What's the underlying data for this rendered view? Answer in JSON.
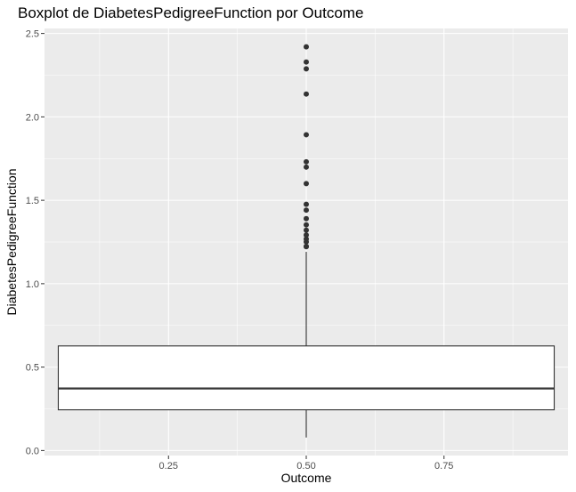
{
  "chart_data": {
    "type": "boxplot",
    "title": "Boxplot de DiabetesPedigreeFunction por Outcome",
    "xlabel": "Outcome",
    "ylabel": "DiabetesPedigreeFunction",
    "xlim": [
      0.025,
      0.975
    ],
    "ylim": [
      -0.03,
      2.53
    ],
    "x_ticks": [
      {
        "value": 0.25,
        "label": "0.25"
      },
      {
        "value": 0.5,
        "label": "0.50"
      },
      {
        "value": 0.75,
        "label": "0.75"
      }
    ],
    "y_ticks": [
      {
        "value": 0.0,
        "label": "0.0"
      },
      {
        "value": 0.5,
        "label": "0.5"
      },
      {
        "value": 1.0,
        "label": "1.0"
      },
      {
        "value": 1.5,
        "label": "1.5"
      },
      {
        "value": 2.0,
        "label": "2.0"
      },
      {
        "value": 2.5,
        "label": "2.5"
      }
    ],
    "box": {
      "x": 0.5,
      "width": 0.9,
      "whisker_low": 0.078,
      "q1": 0.244,
      "median": 0.372,
      "q3": 0.627,
      "whisker_high": 1.191
    },
    "outliers": [
      1.222,
      1.224,
      1.251,
      1.268,
      1.292,
      1.321,
      1.353,
      1.39,
      1.441,
      1.476,
      1.6,
      1.699,
      1.731,
      1.893,
      2.137,
      2.288,
      2.329,
      2.42
    ],
    "grid": true,
    "colors": {
      "panel_background": "#ebebeb",
      "grid_major": "#ffffff",
      "box_fill": "#ffffff",
      "box_line": "#333333",
      "outlier": "#333333"
    }
  }
}
